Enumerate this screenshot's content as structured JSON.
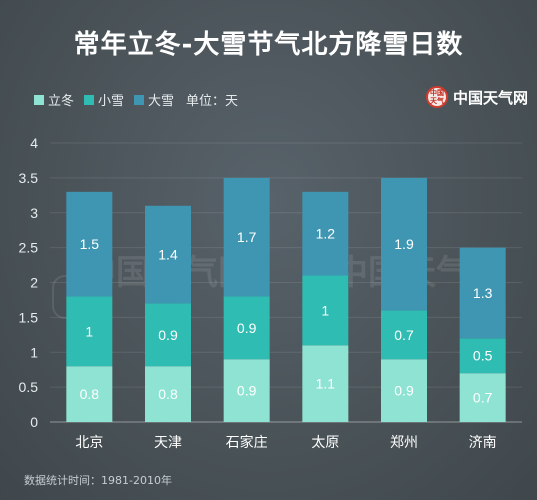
{
  "title": "常年立冬-大雪节气北方降雪日数",
  "legend": {
    "items": [
      {
        "label": "立冬",
        "color": "#8fe3d3"
      },
      {
        "label": "小雪",
        "color": "#2fbcb2"
      },
      {
        "label": "大雪",
        "color": "#3f96b2"
      }
    ],
    "unit": "单位：天"
  },
  "logo": {
    "seal_text": "中国天气",
    "text": "中国天气网"
  },
  "watermark": {
    "text": "中国天气网"
  },
  "footnote": "数据统计时间：1981-2010年",
  "chart_data": {
    "type": "bar",
    "stacked": true,
    "title": "常年立冬-大雪节气北方降雪日数",
    "xlabel": "",
    "ylabel": "",
    "unit": "单位：天",
    "categories": [
      "北京",
      "天津",
      "石家庄",
      "太原",
      "郑州",
      "济南"
    ],
    "series": [
      {
        "name": "立冬",
        "color": "#8fe3d3",
        "values": [
          0.8,
          0.8,
          0.9,
          1.1,
          0.9,
          0.7
        ]
      },
      {
        "name": "小雪",
        "color": "#2fbcb2",
        "values": [
          1,
          0.9,
          0.9,
          1,
          0.7,
          0.5
        ]
      },
      {
        "name": "大雪",
        "color": "#3f96b2",
        "values": [
          1.5,
          1.4,
          1.7,
          1.2,
          1.9,
          1.3
        ]
      }
    ],
    "ylim": [
      0,
      4
    ],
    "yticks": [
      "0",
      "0.5",
      "1",
      "1.5",
      "2",
      "2.5",
      "3",
      "3.5",
      "4"
    ],
    "grid": true,
    "legend_position": "top-left"
  }
}
